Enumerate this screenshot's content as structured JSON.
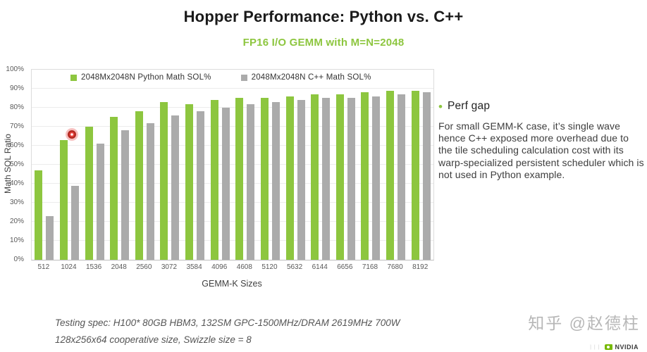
{
  "header": {
    "title": "Hopper Performance: Python vs. C++",
    "subtitle": "FP16 I/O GEMM with M=N=2048"
  },
  "chart_data": {
    "type": "bar",
    "title": "Hopper Performance: Python vs. C++",
    "subtitle": "FP16 I/O GEMM with M=N=2048",
    "categories": [
      "512",
      "1024",
      "1536",
      "2048",
      "2560",
      "3072",
      "3584",
      "4096",
      "4608",
      "5120",
      "5632",
      "6144",
      "6656",
      "7168",
      "7680",
      "8192"
    ],
    "series": [
      {
        "name": "2048Mx2048N Python Math SOL%",
        "color": "#8dc63f",
        "values": [
          47,
          63,
          70,
          75,
          78,
          83,
          82,
          84,
          85,
          85,
          86,
          87,
          87,
          88,
          89,
          89
        ]
      },
      {
        "name": "2048Mx2048N C++ Math SOL%",
        "color": "#ababab",
        "values": [
          23,
          39,
          61,
          68,
          72,
          76,
          78,
          80,
          82,
          83,
          84,
          85,
          85,
          86,
          87,
          88
        ]
      }
    ],
    "xlabel": "GEMM-K Sizes",
    "ylabel": "Math SOL Ratio",
    "ylim": [
      0,
      100
    ],
    "ytick_step": 10,
    "ytick_suffix": "%",
    "grid": true,
    "legend_position": "top-inside"
  },
  "annotation": {
    "bullet": "•",
    "heading": "Perf gap",
    "body": "For small GEMM-K case, it’s single wave hence C++ exposed more overhead due to the tile scheduling calculation cost with its warp-specialized persistent scheduler which is not used in Python example."
  },
  "footnotes": {
    "line1": "Testing spec: H100* 80GB HBM3, 132SM GPC-1500MHz/DRAM 2619MHz 700W",
    "line2": "128x256x64 cooperative size, Swizzle size = 8"
  },
  "watermark": {
    "text": "知乎 @赵德柱"
  },
  "branding": {
    "logo_text": "NVIDIA"
  },
  "colors": {
    "accent_green": "#8dc63f",
    "bar_gray": "#ababab",
    "title_text": "#1a1a1a",
    "body_text": "#3d3d3d",
    "axis_text": "#595959",
    "watermark_gray": "#aaaaaa",
    "marker_red": "#b0261d"
  },
  "icons": {
    "click_marker": "red-ring-dot",
    "legend_swatch": "filled-square",
    "nvidia_eye": "green-eye-logo"
  }
}
